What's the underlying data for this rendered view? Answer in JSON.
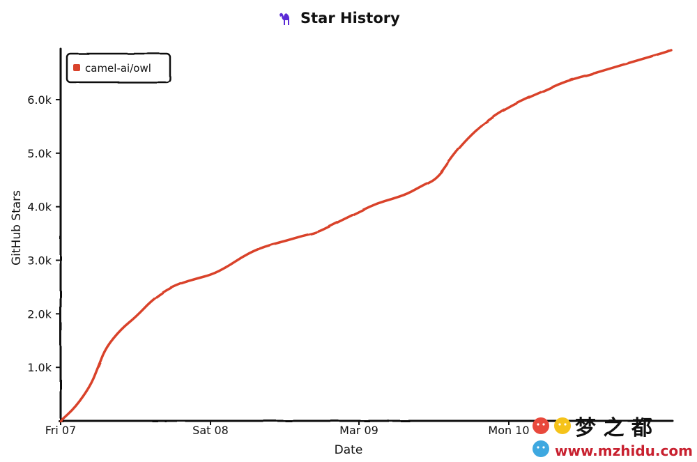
{
  "chart_data": {
    "type": "line",
    "title": "Star History",
    "title_icon": "camel-icon",
    "xlabel": "Date",
    "ylabel": "GitHub Stars",
    "x_ticks": [
      "Fri 07",
      "Sat 08",
      "Mar 09",
      "Mon 10"
    ],
    "y_ticks": [
      "1.0k",
      "2.0k",
      "3.0k",
      "4.0k",
      "5.0k",
      "6.0k"
    ],
    "x_range": [
      0,
      4
    ],
    "ylim": [
      0,
      6950
    ],
    "grid": false,
    "legend_position": "top-left",
    "series": [
      {
        "name": "camel-ai/owl",
        "color": "#d9432b",
        "x": [
          0.0,
          0.1,
          0.2,
          0.25,
          0.3,
          0.4,
          0.5,
          0.6,
          0.7,
          0.8,
          0.9,
          1.0,
          1.1,
          1.2,
          1.3,
          1.4,
          1.5,
          1.6,
          1.7,
          1.8,
          1.9,
          2.0,
          2.1,
          2.2,
          2.3,
          2.4,
          2.5,
          2.6,
          2.7,
          2.8,
          2.9,
          3.0,
          3.1,
          3.2,
          3.3,
          3.4,
          3.5,
          3.6,
          3.7,
          3.8,
          3.9,
          4.0,
          4.05
        ],
        "values": [
          0,
          280,
          720,
          1100,
          1480,
          1850,
          2100,
          2420,
          2640,
          2780,
          2870,
          2950,
          3100,
          3300,
          3460,
          3560,
          3640,
          3730,
          3800,
          3950,
          4100,
          4250,
          4390,
          4480,
          4580,
          4750,
          4900,
          5350,
          5700,
          5980,
          6200,
          6370,
          6520,
          6650,
          6790,
          6900,
          6980,
          7070,
          7160,
          7250,
          7340,
          7430,
          7480
        ]
      }
    ]
  },
  "watermark": {
    "brand": "梦 之 都",
    "url": "www.mzhidu.com",
    "colors": [
      "#e8483c",
      "#f5c31a",
      "#3ea8e0"
    ]
  }
}
